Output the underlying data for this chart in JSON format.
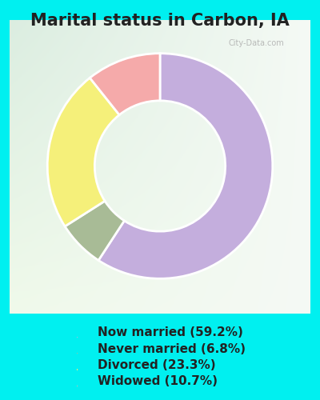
{
  "title": "Marital status in Carbon, IA",
  "slices": [
    59.2,
    6.8,
    23.3,
    10.7
  ],
  "labels": [
    "Now married (59.2%)",
    "Never married (6.8%)",
    "Divorced (23.3%)",
    "Widowed (10.7%)"
  ],
  "colors": [
    "#c4aedd",
    "#a8bb96",
    "#f5f07a",
    "#f5aaaa"
  ],
  "start_angle": 90,
  "donut_width": 0.42,
  "bg_color_outer": "#00f0f0",
  "title_fontsize": 15,
  "legend_fontsize": 11,
  "watermark": "City-Data.com"
}
